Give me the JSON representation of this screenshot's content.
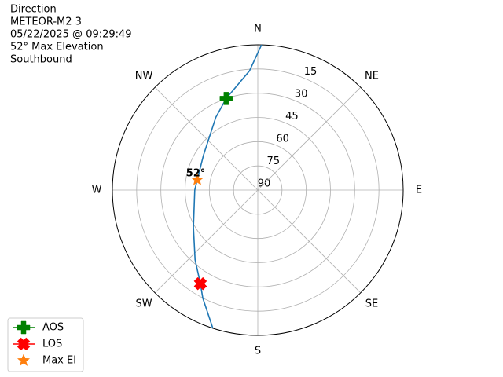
{
  "chart_data": {
    "type": "polar",
    "title_lines": [
      "Direction",
      "METEOR-M2 3",
      "05/22/2025 @ 09:29:49",
      "52° Max Elevation",
      "Southbound"
    ],
    "thetaticks": [
      0,
      45,
      90,
      135,
      180,
      225,
      270,
      315
    ],
    "theta_labels": [
      "N",
      "NE",
      "E",
      "SE",
      "S",
      "SW",
      "W",
      "NW"
    ],
    "rlim": [
      90,
      0
    ],
    "rticks": [
      15,
      30,
      45,
      60,
      75,
      90
    ],
    "grid": true,
    "series": [
      {
        "color": "#1f77b4",
        "theta": [
          1.5,
          356,
          341,
          330,
          303,
          279.7,
          270,
          240,
          222,
          211.5,
          207,
          198
        ],
        "values": [
          0,
          16,
          30,
          38,
          50,
          52,
          51,
          44,
          32,
          22,
          15,
          0
        ]
      }
    ],
    "markers": [
      {
        "name": "AOS",
        "color": "#008000",
        "marker": "plus",
        "theta": 341,
        "values": 30
      },
      {
        "name": "LOS",
        "color": "#ff0000",
        "marker": "x",
        "theta": 211.5,
        "values": 22
      },
      {
        "name": "Max El",
        "color": "#ff7f0e",
        "marker": "star",
        "theta": 279.7,
        "values": 52
      }
    ],
    "annotation": {
      "text": "52°",
      "theta": 279.7,
      "r": 52
    },
    "legend": "lower left"
  }
}
